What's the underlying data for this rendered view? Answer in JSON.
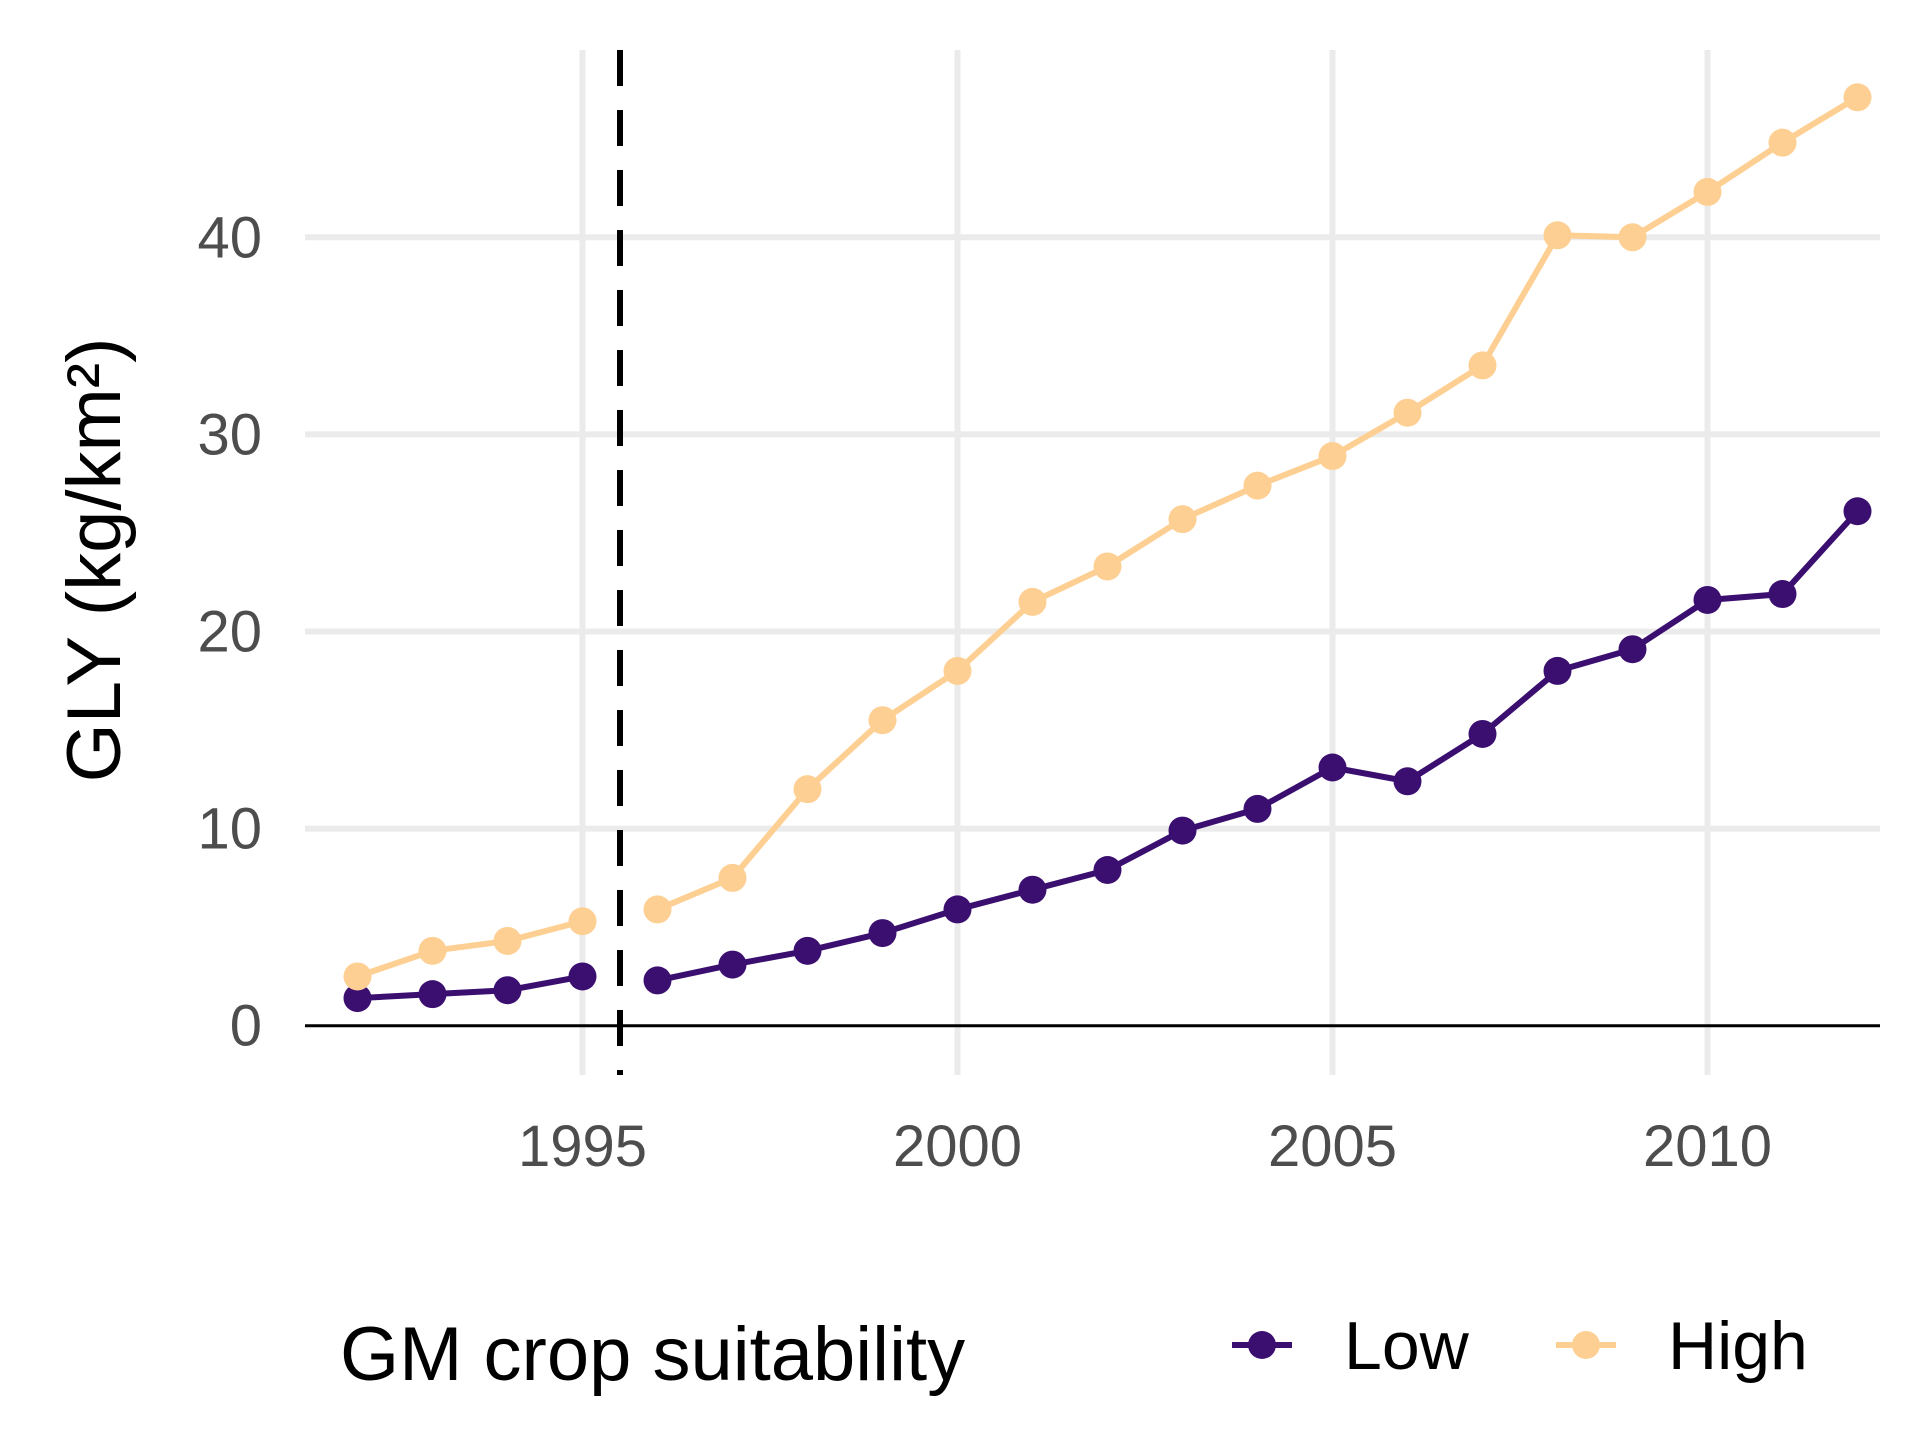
{
  "chart_data": {
    "type": "line",
    "title": "",
    "xlabel": "",
    "ylabel": "GLY (kg/km²)",
    "xlim": [
      1991.3,
      2012.3
    ],
    "ylim": [
      -2.5,
      49.5
    ],
    "x_ticks": [
      1995,
      2000,
      2005,
      2010
    ],
    "x_tick_labels": [
      "1995",
      "2000",
      "2005",
      "2010"
    ],
    "y_ticks": [
      0,
      10,
      20,
      30,
      40
    ],
    "y_tick_labels": [
      "0",
      "10",
      "20",
      "30",
      "40"
    ],
    "grid": true,
    "reference_line": {
      "type": "vertical",
      "style": "dashed",
      "x": 1995.5
    },
    "legend": {
      "title": "GM crop suitability",
      "position": "bottom"
    },
    "series": [
      {
        "name": "Low",
        "color": "#3b0f70",
        "segments": [
          {
            "x": [
              1992,
              1993,
              1994,
              1995
            ],
            "y": [
              1.4,
              1.6,
              1.8,
              2.5
            ]
          },
          {
            "x": [
              1996,
              1997,
              1998,
              1999,
              2000,
              2001,
              2002,
              2003,
              2004,
              2005,
              2006,
              2007,
              2008,
              2009,
              2010,
              2011,
              2012
            ],
            "y": [
              2.3,
              3.1,
              3.8,
              4.7,
              5.9,
              6.9,
              7.9,
              9.9,
              11.0,
              13.1,
              12.4,
              14.8,
              18.0,
              19.1,
              21.6,
              21.9,
              26.1
            ]
          }
        ]
      },
      {
        "name": "High",
        "color": "#fecf92",
        "segments": [
          {
            "x": [
              1992,
              1993,
              1994,
              1995
            ],
            "y": [
              2.5,
              3.8,
              4.3,
              5.3
            ]
          },
          {
            "x": [
              1996,
              1997,
              1998,
              1999,
              2000,
              2001,
              2002,
              2003,
              2004,
              2005,
              2006,
              2007,
              2008,
              2009,
              2010,
              2011,
              2012
            ],
            "y": [
              5.9,
              7.5,
              12.0,
              15.5,
              18.0,
              21.5,
              23.3,
              25.7,
              27.4,
              28.9,
              31.1,
              33.5,
              40.1,
              40.0,
              42.3,
              44.8,
              47.1
            ]
          }
        ]
      }
    ]
  }
}
